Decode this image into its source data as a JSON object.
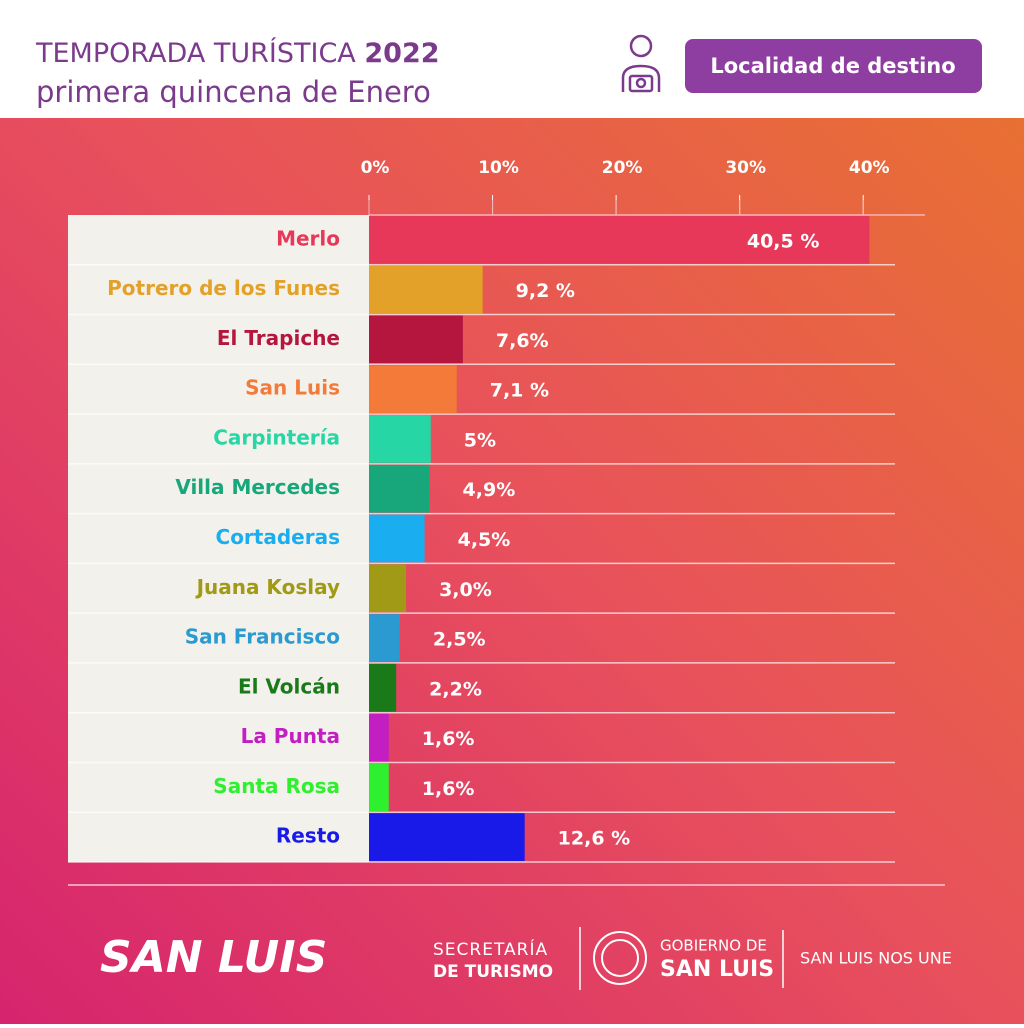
{
  "header": {
    "title": "TEMPORADA TURÍSTICA",
    "year": "2022",
    "subtitle": "primera quincena de Enero",
    "button": "Localidad de destino"
  },
  "chart_data": {
    "type": "bar",
    "orientation": "horizontal",
    "categories": [
      "Merlo",
      "Potrero de los Funes",
      "El Trapiche",
      "San Luis",
      "Carpintería",
      "Villa Mercedes",
      "Cortaderas",
      "Juana Koslay",
      "San Francisco",
      "El Volcán",
      "La Punta",
      "Santa Rosa",
      "Resto"
    ],
    "values": [
      40.5,
      9.2,
      7.6,
      7.1,
      5,
      4.9,
      4.5,
      3.0,
      2.5,
      2.2,
      1.6,
      1.6,
      12.6
    ],
    "value_labels": [
      "40,5 %",
      "9,2 %",
      "7,6%",
      "7,1 %",
      "5%",
      "4,9%",
      "4,5%",
      "3,0%",
      "2,5%",
      "2,2%",
      "1,6%",
      "1,6%",
      "12,6 %"
    ],
    "colors": [
      "#e8385a",
      "#e3a12a",
      "#b5163d",
      "#f47a3a",
      "#26d6a5",
      "#18a77a",
      "#1aaef0",
      "#a09a16",
      "#2a9ad0",
      "#1a7a1a",
      "#c21ec2",
      "#2ef02e",
      "#1a1ae8"
    ],
    "xlim": [
      0,
      45
    ],
    "xticks": [
      {
        "value": 0,
        "label": "0%"
      },
      {
        "value": 10,
        "label": "10%"
      },
      {
        "value": 20,
        "label": "20%"
      },
      {
        "value": 30,
        "label": "30%"
      },
      {
        "value": 40,
        "label": "40%"
      }
    ],
    "grid": true
  },
  "footer": {
    "logo": "SAN LUIS",
    "secretaria_1": "SECRETARÍA",
    "secretaria_2": "DE TURISMO",
    "gobierno_1": "GOBIERNO DE",
    "gobierno_2": "SAN LUIS",
    "slogan": "SAN LUIS NOS UNE"
  }
}
